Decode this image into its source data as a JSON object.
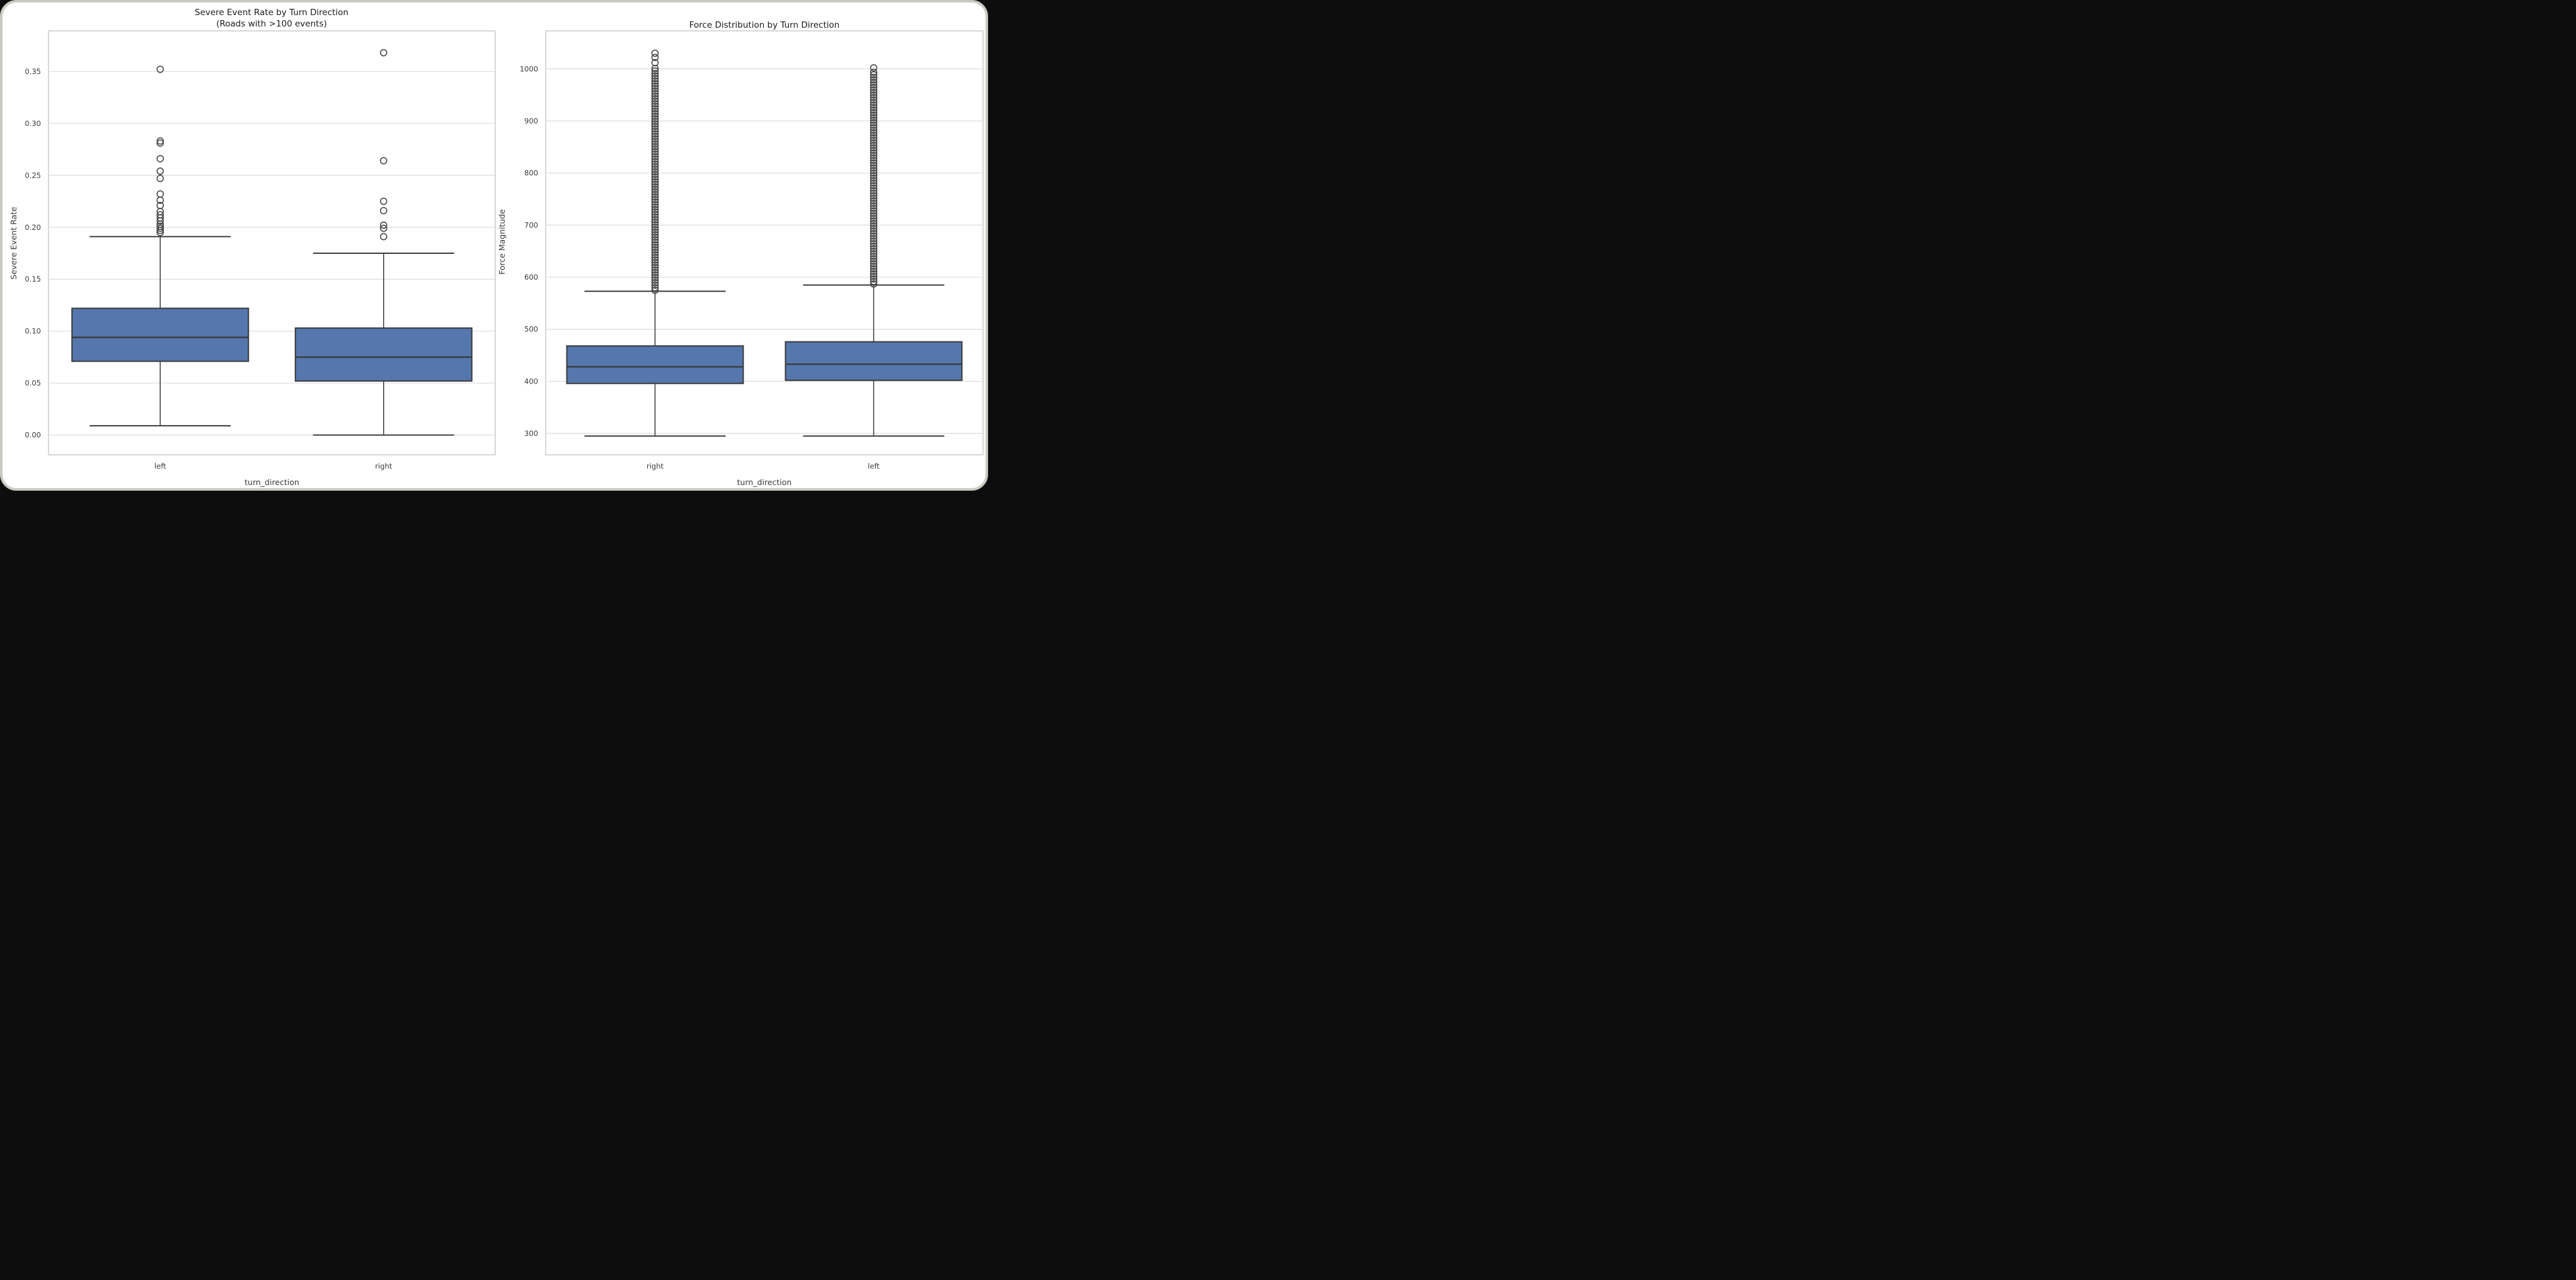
{
  "figure": {
    "background_color": "#ffffff",
    "frame_border_color": "#c9c9bf",
    "box_fill_color": "#5577AD",
    "box_edge_color": "#3A3A3A",
    "grid_color": "#DCDCDC",
    "spine_color": "#CFCFCF",
    "text_color": "#3a3a3a"
  },
  "chart_data": [
    {
      "type": "box",
      "title": "Severe Event Rate by Turn Direction",
      "subtitle": "(Roads with >100 events)",
      "xlabel": "turn_direction",
      "ylabel": "Severe Event Rate",
      "categories": [
        "left",
        "right"
      ],
      "ylim": [
        -0.019,
        0.389
      ],
      "grid": true,
      "legend": "none",
      "yticks": [
        0.0,
        0.05,
        0.1,
        0.15,
        0.2,
        0.25,
        0.3,
        0.35
      ],
      "ytick_labels": [
        "0.00",
        "0.05",
        "0.10",
        "0.15",
        "0.20",
        "0.25",
        "0.30",
        "0.35"
      ],
      "boxes": [
        {
          "category": "left",
          "whisker_low": 0.009,
          "q1": 0.071,
          "median": 0.094,
          "q3": 0.122,
          "whisker_high": 0.191,
          "outliers": [
            0.352,
            0.283,
            0.281,
            0.266,
            0.254,
            0.247,
            0.232,
            0.226,
            0.221,
            0.215,
            0.212,
            0.209,
            0.206,
            0.203,
            0.201,
            0.199,
            0.197,
            0.195
          ]
        },
        {
          "category": "right",
          "whisker_low": 0.0,
          "q1": 0.052,
          "median": 0.075,
          "q3": 0.103,
          "whisker_high": 0.175,
          "outliers": [
            0.368,
            0.264,
            0.225,
            0.216,
            0.202,
            0.199,
            0.191
          ]
        }
      ]
    },
    {
      "type": "box",
      "title": "Force Distribution by Turn Direction",
      "subtitle": "",
      "xlabel": "turn_direction",
      "ylabel": "Force Magnitude",
      "categories": [
        "right",
        "left"
      ],
      "ylim": [
        259,
        1073
      ],
      "grid": true,
      "legend": "none",
      "yticks": [
        300,
        400,
        500,
        600,
        700,
        800,
        900,
        1000
      ],
      "ytick_labels": [
        "300",
        "400",
        "500",
        "600",
        "700",
        "800",
        "900",
        "1000"
      ],
      "boxes": [
        {
          "category": "right",
          "whisker_low": 295,
          "q1": 396,
          "median": 428,
          "q3": 468,
          "whisker_high": 573,
          "outlier_stack": {
            "from": 575,
            "to": 1005,
            "note": "dense overlapping column of outlier circles"
          },
          "outliers": [
            1012,
            1022,
            1030
          ]
        },
        {
          "category": "left",
          "whisker_low": 295,
          "q1": 402,
          "median": 433,
          "q3": 476,
          "whisker_high": 585,
          "outlier_stack": {
            "from": 587,
            "to": 998,
            "note": "dense overlapping column of outlier circles"
          },
          "outliers": [
            1002
          ]
        }
      ]
    }
  ]
}
